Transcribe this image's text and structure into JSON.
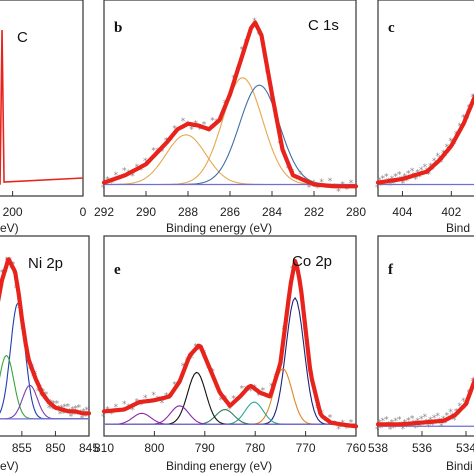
{
  "colors": {
    "fit": "#e8231c",
    "raw": "#8a8a8a",
    "background": "#6f6fd6",
    "c_sp2": "#3f6fa8",
    "c_sp3": "#e6a84e",
    "c_co": "#6b8ab8",
    "ni_main": "#1f3fb0",
    "ni_sat": "#3aa63a",
    "ni_extra": "#7a3fb0",
    "co_main": "#1a237e",
    "co_orange": "#d98a2a",
    "co_purple": "#8e24aa",
    "co_green": "#2e7d5b",
    "co_teal": "#26a69a",
    "co_black": "#111111",
    "co_base": "#6a1fb0"
  },
  "panels": {
    "a": {
      "letter": "",
      "title": "C",
      "xlabel": "",
      "ticks": [
        "200",
        "0"
      ],
      "ticks_partial": [
        "0"
      ],
      "xlabel_partial": "(eV)"
    },
    "b": {
      "letter": "b",
      "title": "C 1s",
      "xlabel": "Binding energy (eV)",
      "ticks": [
        "292",
        "290",
        "288",
        "286",
        "284",
        "282",
        "280"
      ]
    },
    "c": {
      "letter": "c",
      "title": "",
      "xlabel_partial": "Bind",
      "ticks": [
        "404",
        "402"
      ]
    },
    "d": {
      "letter": "",
      "title": "Ni 2p",
      "ticks": [
        "855",
        "850",
        "845"
      ],
      "xlabel_partial": "(eV)"
    },
    "e": {
      "letter": "e",
      "title": "Co 2p",
      "xlabel": "Binding energy (eV)",
      "ticks": [
        "810",
        "800",
        "790",
        "780",
        "770",
        "760"
      ]
    },
    "f": {
      "letter": "f",
      "title": "",
      "xlabel_partial": "Bindi",
      "ticks": [
        "538",
        "536",
        "534"
      ]
    }
  },
  "chart_data": [
    {
      "type": "line",
      "panel": "a",
      "title": "",
      "annotation": "C",
      "x_visible_ticks": [
        200,
        0
      ],
      "series": [
        {
          "values": "survey spectrum with sharp C 1s peak near 285 eV"
        }
      ]
    },
    {
      "type": "line",
      "panel": "b",
      "title": "C 1s",
      "xlabel": "Binding energy (eV)",
      "xlim": [
        292,
        280
      ],
      "x": [
        292,
        291,
        290,
        289,
        288.5,
        288,
        287.5,
        287,
        286.5,
        286,
        285.5,
        285,
        284.8,
        284.5,
        284,
        283.5,
        283,
        282,
        281,
        280
      ],
      "series": [
        {
          "values": [
            4,
            8,
            14,
            26,
            33,
            36,
            35,
            33,
            38,
            52,
            70,
            88,
            91,
            84,
            52,
            22,
            8,
            3,
            2,
            2
          ]
        }
      ],
      "components": [
        {
          "center": 288.1,
          "height": 27
        },
        {
          "center": 285.4,
          "height": 58
        },
        {
          "center": 284.6,
          "height": 54
        }
      ]
    },
    {
      "type": "line",
      "panel": "c",
      "title": "",
      "xlim": [
        405,
        400.5
      ],
      "x": [
        405,
        404,
        403,
        402.5,
        402,
        401.5,
        401,
        400.5
      ],
      "series": [
        {
          "values": [
            4,
            6,
            10,
            16,
            24,
            36,
            52,
            70
          ]
        }
      ]
    },
    {
      "type": "line",
      "panel": "d",
      "title": "Ni 2p",
      "xlim": [
        859,
        845
      ],
      "x": [
        859,
        858,
        857,
        856,
        855.5,
        855,
        854.5,
        854,
        853,
        852,
        851,
        850,
        849,
        848,
        847,
        846,
        845
      ],
      "series": [
        {
          "values": [
            60,
            80,
            92,
            85,
            74,
            60,
            48,
            38,
            28,
            20,
            15,
            12,
            11,
            10,
            10,
            9,
            9
          ]
        }
      ],
      "components": [
        {
          "center": 855.6,
          "height": 62
        },
        {
          "center": 857.3,
          "height": 34
        },
        {
          "center": 853.8,
          "height": 18
        }
      ]
    },
    {
      "type": "line",
      "panel": "e",
      "title": "Co 2p",
      "xlabel": "Binding energy (eV)",
      "xlim": [
        810,
        760
      ],
      "x": [
        810,
        806,
        803,
        800,
        797,
        795,
        793,
        791,
        789,
        787,
        785,
        783,
        781,
        779,
        777,
        775,
        773,
        772,
        771,
        769,
        767,
        765,
        763,
        760
      ],
      "series": [
        {
          "values": [
            10,
            11,
            15,
            16,
            18,
            26,
            40,
            46,
            33,
            20,
            13,
            18,
            24,
            20,
            18,
            36,
            78,
            92,
            78,
            30,
            8,
            4,
            3,
            2
          ]
        }
      ],
      "components": [
        {
          "center": 772.1,
          "height": 68
        },
        {
          "center": 774.5,
          "height": 30
        },
        {
          "center": 780.2,
          "height": 12
        },
        {
          "center": 786.0,
          "height": 8
        },
        {
          "center": 791.6,
          "height": 28
        },
        {
          "center": 795.0,
          "height": 10
        },
        {
          "center": 802.5,
          "height": 6
        }
      ]
    },
    {
      "type": "line",
      "panel": "f",
      "title": "",
      "xlim": [
        538,
        533
      ],
      "x": [
        538,
        537,
        536,
        535,
        534.5,
        534,
        533.5,
        533
      ],
      "series": [
        {
          "values": [
            3,
            3,
            4,
            5,
            8,
            14,
            30,
            60
          ]
        }
      ]
    }
  ]
}
